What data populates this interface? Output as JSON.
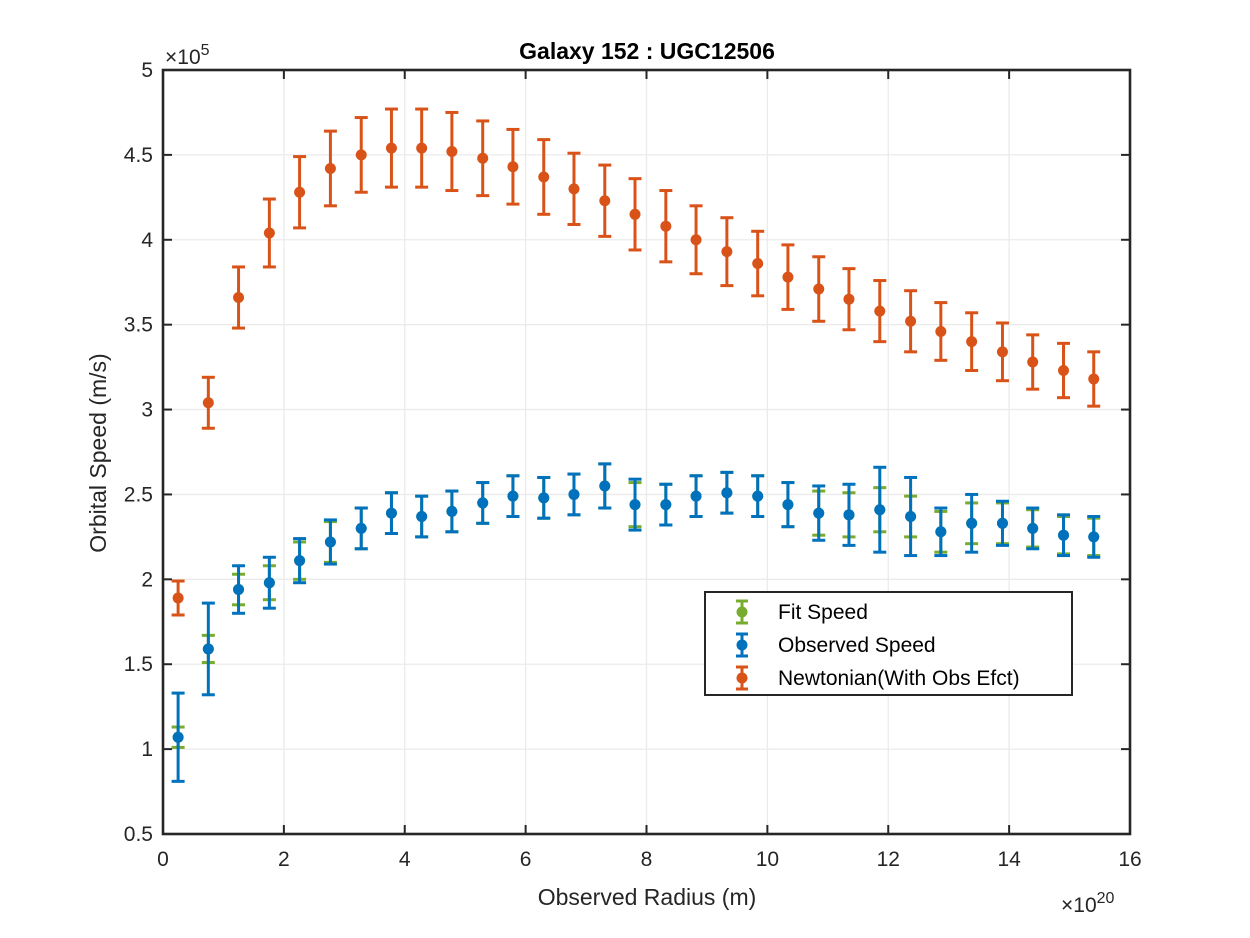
{
  "chart_data": {
    "type": "scatter",
    "title": "Galaxy 152 : UGC12506",
    "xlabel": "Observed Radius (m)",
    "ylabel": "Orbital Speed (m/s)",
    "x_multiplier": "×10",
    "x_exponent": "20",
    "y_multiplier": "×10",
    "y_exponent": "5",
    "xlim": [
      0,
      16
    ],
    "ylim": [
      0.5,
      5
    ],
    "xticks": [
      0,
      2,
      4,
      6,
      8,
      10,
      12,
      14,
      16
    ],
    "xtick_labels": [
      "0",
      "2",
      "4",
      "6",
      "8",
      "10",
      "12",
      "14",
      "16"
    ],
    "yticks": [
      0.5,
      1,
      1.5,
      2,
      2.5,
      3,
      3.5,
      4,
      4.5,
      5
    ],
    "ytick_labels": [
      "0.5",
      "1",
      "1.5",
      "2",
      "2.5",
      "3",
      "3.5",
      "4",
      "4.5",
      "5"
    ],
    "grid": true,
    "legend_position": "lower-right",
    "x": [
      0.25,
      0.75,
      1.25,
      1.76,
      2.26,
      2.77,
      3.28,
      3.78,
      4.28,
      4.78,
      5.29,
      5.79,
      6.3,
      6.8,
      7.31,
      7.81,
      8.32,
      8.82,
      9.33,
      9.84,
      10.34,
      10.85,
      11.35,
      11.86,
      12.37,
      12.87,
      13.38,
      13.89,
      14.39,
      14.9,
      15.4
    ],
    "series": [
      {
        "name": "Fit Speed",
        "color": "#77ac30",
        "y": [
          1.07,
          1.59,
          1.94,
          1.98,
          2.11,
          2.22,
          2.3,
          2.39,
          2.37,
          2.4,
          2.45,
          2.49,
          2.48,
          2.5,
          2.55,
          2.44,
          2.44,
          2.49,
          2.51,
          2.49,
          2.44,
          2.39,
          2.38,
          2.41,
          2.37,
          2.28,
          2.33,
          2.33,
          2.3,
          2.26,
          2.25
        ],
        "err": [
          0.06,
          0.08,
          0.09,
          0.1,
          0.11,
          0.12,
          0.12,
          0.12,
          0.12,
          0.12,
          0.12,
          0.12,
          0.12,
          0.12,
          0.13,
          0.13,
          0.12,
          0.12,
          0.12,
          0.12,
          0.13,
          0.13,
          0.13,
          0.13,
          0.12,
          0.12,
          0.12,
          0.12,
          0.11,
          0.11,
          0.11
        ]
      },
      {
        "name": "Observed Speed",
        "color": "#0072bd",
        "y": [
          1.07,
          1.59,
          1.94,
          1.98,
          2.11,
          2.22,
          2.3,
          2.39,
          2.37,
          2.4,
          2.45,
          2.49,
          2.48,
          2.5,
          2.55,
          2.44,
          2.44,
          2.49,
          2.51,
          2.49,
          2.44,
          2.39,
          2.38,
          2.41,
          2.37,
          2.28,
          2.33,
          2.33,
          2.3,
          2.26,
          2.25
        ],
        "err": [
          0.26,
          0.27,
          0.14,
          0.15,
          0.13,
          0.13,
          0.12,
          0.12,
          0.12,
          0.12,
          0.12,
          0.12,
          0.12,
          0.12,
          0.13,
          0.15,
          0.12,
          0.12,
          0.12,
          0.12,
          0.13,
          0.16,
          0.18,
          0.25,
          0.23,
          0.14,
          0.17,
          0.13,
          0.12,
          0.12,
          0.12
        ]
      },
      {
        "name": "Newtonian(With Obs Efct)",
        "color": "#d95319",
        "y": [
          1.89,
          3.04,
          3.66,
          4.04,
          4.28,
          4.42,
          4.5,
          4.54,
          4.54,
          4.52,
          4.48,
          4.43,
          4.37,
          4.3,
          4.23,
          4.15,
          4.08,
          4.0,
          3.93,
          3.86,
          3.78,
          3.71,
          3.65,
          3.58,
          3.52,
          3.46,
          3.4,
          3.34,
          3.28,
          3.23,
          3.18
        ],
        "err": [
          0.1,
          0.15,
          0.18,
          0.2,
          0.21,
          0.22,
          0.22,
          0.23,
          0.23,
          0.23,
          0.22,
          0.22,
          0.22,
          0.21,
          0.21,
          0.21,
          0.21,
          0.2,
          0.2,
          0.19,
          0.19,
          0.19,
          0.18,
          0.18,
          0.18,
          0.17,
          0.17,
          0.17,
          0.16,
          0.16,
          0.16
        ]
      }
    ]
  }
}
